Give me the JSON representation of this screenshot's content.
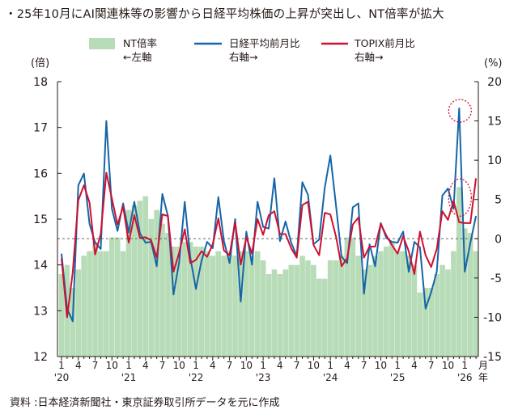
{
  "title": "・25年10月にAI関連株等の影響から日経平均株価の上昇が突出し、NT倍率が拡大",
  "source": "資料 :日本経済新聞社・東京証券取引所データを元に作成",
  "colors": {
    "nt": "#b7dcb7",
    "nikkei": "#1565a8",
    "topix": "#d0102f",
    "axis": "#231815",
    "dashed": "#666666",
    "circle": "#d0102f"
  },
  "chart_data": {
    "type": "bar+line",
    "x_month_labels": [
      "1",
      "4",
      "7",
      "10",
      "1",
      "4",
      "7",
      "10",
      "1",
      "4",
      "7",
      "10",
      "1",
      "4",
      "7",
      "10",
      "1",
      "4",
      "7",
      "10",
      "1",
      "4",
      "7",
      "10",
      "1"
    ],
    "x_year_labels": [
      {
        "index": 0,
        "label": "'20"
      },
      {
        "index": 12,
        "label": "'21"
      },
      {
        "index": 24,
        "label": "'22"
      },
      {
        "index": 36,
        "label": "'23"
      },
      {
        "index": 48,
        "label": "'24"
      },
      {
        "index": 60,
        "label": "'25"
      },
      {
        "index": 72,
        "label": "'26"
      }
    ],
    "x_unit": "月",
    "x_unit2": "年",
    "left_axis": {
      "label": "(倍)",
      "ylim": [
        12,
        18
      ],
      "ticks": [
        "12",
        "13",
        "14",
        "15",
        "16",
        "17",
        "18"
      ]
    },
    "right_axis": {
      "label": "(%)",
      "ylim": [
        -15,
        20
      ],
      "ticks": [
        "20",
        "15",
        "10",
        "5",
        "0",
        "-5",
        "-10",
        "-15"
      ],
      "tick_values": [
        20,
        15,
        10,
        5,
        0,
        -5,
        -10,
        -15
      ]
    },
    "series": [
      {
        "name": "NT倍率",
        "legend_line2": "←左軸",
        "type": "bar",
        "axis": "left",
        "values": [
          13.8,
          14.0,
          13.5,
          13.9,
          14.2,
          14.3,
          14.5,
          14.3,
          14.3,
          14.6,
          14.6,
          14.3,
          15.2,
          15.3,
          15.4,
          15.5,
          15.0,
          15.2,
          14.9,
          14.7,
          14.4,
          14.4,
          14.5,
          14.5,
          14.4,
          14.4,
          14.3,
          14.2,
          14.3,
          14.2,
          14.3,
          14.2,
          14.3,
          14.3,
          14.2,
          14.3,
          14.1,
          13.8,
          13.9,
          13.8,
          13.9,
          14.0,
          14.0,
          14.2,
          14.1,
          14.0,
          13.7,
          13.7,
          14.1,
          14.1,
          14.2,
          14.6,
          14.6,
          14.2,
          13.9,
          14.0,
          14.2,
          14.3,
          14.4,
          14.5,
          14.3,
          14.3,
          14.2,
          14.0,
          13.4,
          13.5,
          13.5,
          13.8,
          14.0,
          13.9,
          14.3,
          15.7,
          14.8,
          14.7,
          14.3
        ]
      },
      {
        "name": "日経平均前月比",
        "legend_line2": "右軸→",
        "type": "line",
        "axis": "right",
        "values": [
          -1.9,
          -8.9,
          -10.5,
          6.8,
          8.3,
          1.9,
          -0.5,
          -1.3,
          15.0,
          3.8,
          1.0,
          4.5,
          0.8,
          4.7,
          0.7,
          -0.5,
          -0.4,
          -3.5,
          5.7,
          2.9,
          -7.1,
          -3.0,
          4.7,
          -2.4,
          -6.4,
          -2.8,
          -0.4,
          -1.2,
          5.3,
          -0.3,
          -3.1,
          2.5,
          -8.0,
          0.9,
          -3.3,
          4.7,
          1.5,
          1.3,
          7.7,
          -0.3,
          2.2,
          -0.5,
          -2.2,
          7.2,
          5.6,
          -0.7,
          -0.1,
          6.5,
          10.6,
          4.3,
          -2.3,
          -3.1,
          4.0,
          4.5,
          -7.0,
          -0.7,
          -3.5,
          2.0,
          0.1,
          -0.4,
          -0.5,
          0.9,
          -4.2,
          -0.4,
          -1.1,
          -8.9,
          -6.8,
          -4.2,
          5.5,
          6.4,
          3.8,
          16.6,
          -4.2,
          -0.5,
          2.9
        ]
      },
      {
        "name": "TOPIX前月比",
        "legend_line2": "右軸→",
        "type": "line",
        "axis": "right",
        "values": [
          -2.5,
          -10.0,
          -4.3,
          4.9,
          6.8,
          4.6,
          -2.0,
          0.6,
          8.4,
          5.1,
          1.8,
          4.1,
          -0.5,
          3.0,
          0.1,
          0.2,
          -0.2,
          -2.4,
          3.1,
          2.9,
          -4.2,
          -1.8,
          1.2,
          -3.1,
          -2.7,
          -1.6,
          -2.3,
          -0.7,
          2.6,
          -1.5,
          -2.1,
          2.1,
          -3.3,
          0.2,
          -1.9,
          2.5,
          0.5,
          3.0,
          3.5,
          0.6,
          0.6,
          -1.2,
          -2.4,
          4.3,
          4.7,
          -0.8,
          -2.1,
          3.3,
          3.1,
          0.3,
          -3.5,
          -2.5,
          1.8,
          2.7,
          -2.4,
          -1.0,
          -1.0,
          1.9,
          0.4,
          -0.8,
          -1.9,
          0.3,
          -1.6,
          -4.5,
          0.9,
          -2.1,
          -3.6,
          -1.3,
          3.5,
          2.4,
          4.8,
          2.1,
          2.0,
          2.0,
          7.7
        ]
      }
    ],
    "annotations": [
      {
        "type": "dashed-circle",
        "series": "日経平均前月比",
        "index": 71
      },
      {
        "type": "dashed-ellipse",
        "series": "NT倍率",
        "index": 71
      }
    ],
    "reference_line": {
      "axis": "right",
      "value": 0,
      "style": "dashed"
    }
  }
}
